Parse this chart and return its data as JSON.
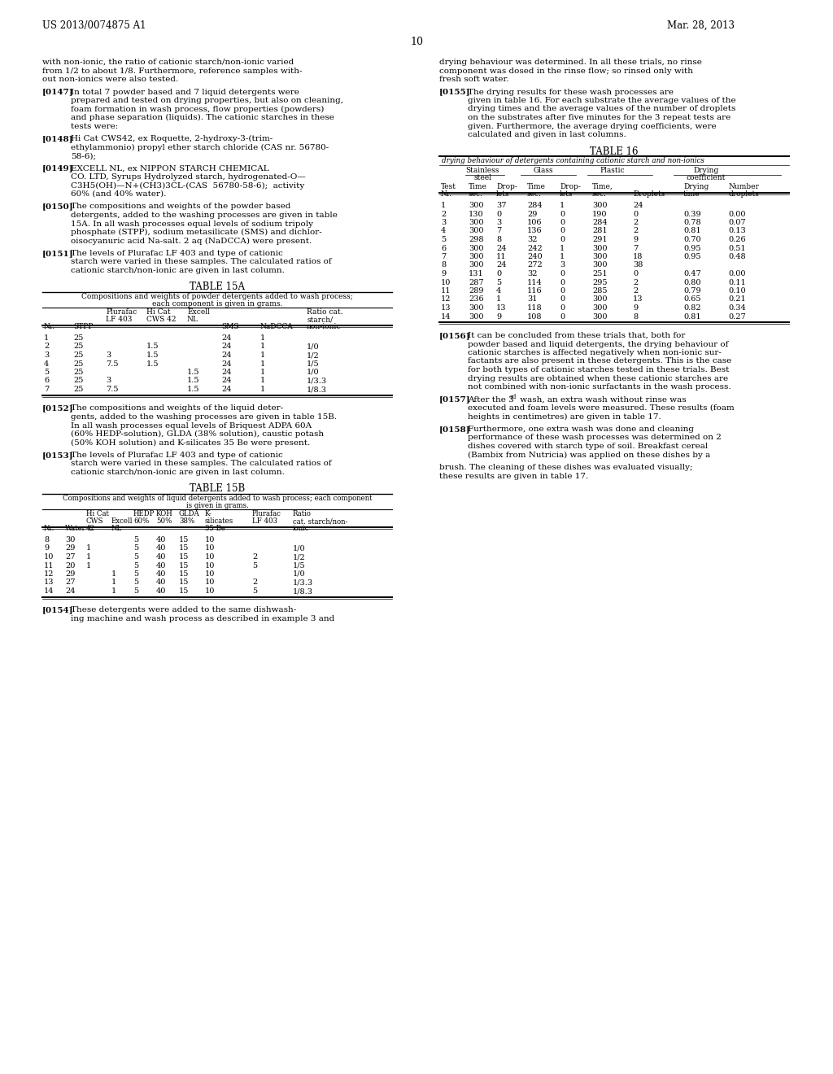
{
  "page_number": "10",
  "patent_number": "US 2013/0074875 A1",
  "patent_date": "Mar. 28, 2013",
  "background_color": "#ffffff",
  "text_color": "#000000",
  "table15a_rows": [
    [
      "1",
      "25",
      "",
      "",
      "",
      "24",
      "1",
      ""
    ],
    [
      "2",
      "25",
      "",
      "1.5",
      "",
      "24",
      "1",
      "1/0"
    ],
    [
      "3",
      "25",
      "3",
      "1.5",
      "",
      "24",
      "1",
      "1/2"
    ],
    [
      "4",
      "25",
      "7.5",
      "1.5",
      "",
      "24",
      "1",
      "1/5"
    ],
    [
      "5",
      "25",
      "",
      "",
      "1.5",
      "24",
      "1",
      "1/0"
    ],
    [
      "6",
      "25",
      "3",
      "",
      "1.5",
      "24",
      "1",
      "1/3.3"
    ],
    [
      "7",
      "25",
      "7.5",
      "",
      "1.5",
      "24",
      "1",
      "1/8.3"
    ]
  ],
  "table15b_rows": [
    [
      "8",
      "30",
      "",
      "",
      "5",
      "40",
      "15",
      "10",
      "",
      ""
    ],
    [
      "9",
      "29",
      "1",
      "",
      "5",
      "40",
      "15",
      "10",
      "",
      "1/0"
    ],
    [
      "10",
      "27",
      "1",
      "",
      "5",
      "40",
      "15",
      "10",
      "2",
      "1/2"
    ],
    [
      "11",
      "20",
      "1",
      "",
      "5",
      "40",
      "15",
      "10",
      "5",
      "1/5"
    ],
    [
      "12",
      "29",
      "",
      "1",
      "5",
      "40",
      "15",
      "10",
      "",
      "1/0"
    ],
    [
      "13",
      "27",
      "",
      "1",
      "5",
      "40",
      "15",
      "10",
      "2",
      "1/3.3"
    ],
    [
      "14",
      "24",
      "",
      "1",
      "5",
      "40",
      "15",
      "10",
      "5",
      "1/8.3"
    ]
  ],
  "table16_rows": [
    [
      "1",
      "300",
      "37",
      "284",
      "1",
      "300",
      "24",
      "",
      ""
    ],
    [
      "2",
      "130",
      "0",
      "29",
      "0",
      "190",
      "0",
      "0.39",
      "0.00"
    ],
    [
      "3",
      "300",
      "3",
      "106",
      "0",
      "284",
      "2",
      "0.78",
      "0.07"
    ],
    [
      "4",
      "300",
      "7",
      "136",
      "0",
      "281",
      "2",
      "0.81",
      "0.13"
    ],
    [
      "5",
      "298",
      "8",
      "32",
      "0",
      "291",
      "9",
      "0.70",
      "0.26"
    ],
    [
      "6",
      "300",
      "24",
      "242",
      "1",
      "300",
      "7",
      "0.95",
      "0.51"
    ],
    [
      "7",
      "300",
      "11",
      "240",
      "1",
      "300",
      "18",
      "0.95",
      "0.48"
    ],
    [
      "8",
      "300",
      "24",
      "272",
      "3",
      "300",
      "38",
      "",
      ""
    ],
    [
      "9",
      "131",
      "0",
      "32",
      "0",
      "251",
      "0",
      "0.47",
      "0.00"
    ],
    [
      "10",
      "287",
      "5",
      "114",
      "0",
      "295",
      "2",
      "0.80",
      "0.11"
    ],
    [
      "11",
      "289",
      "4",
      "116",
      "0",
      "285",
      "2",
      "0.79",
      "0.10"
    ],
    [
      "12",
      "236",
      "1",
      "31",
      "0",
      "300",
      "13",
      "0.65",
      "0.21"
    ],
    [
      "13",
      "300",
      "13",
      "118",
      "0",
      "300",
      "9",
      "0.82",
      "0.34"
    ],
    [
      "14",
      "300",
      "9",
      "108",
      "0",
      "300",
      "8",
      "0.81",
      "0.27"
    ]
  ]
}
